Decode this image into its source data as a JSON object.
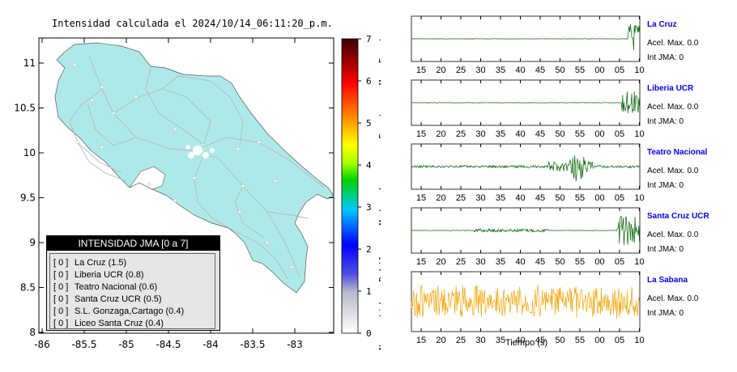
{
  "map": {
    "title": "Intensidad calculada el 2024/10/14_06:11:20_p.m.",
    "lat_ticks": [
      "11",
      "10.5",
      "10",
      "9.5",
      "9",
      "8.5",
      "8"
    ],
    "lon_ticks": [
      "-86",
      "-85.5",
      "-85",
      "-84.5",
      "-84",
      "-83.5",
      "-83"
    ],
    "land_color": "#aee9ea",
    "road_color": "#b8b8b8"
  },
  "colorbar": {
    "ticks": [
      "7",
      "6",
      "5",
      "4",
      "3",
      "2",
      "1",
      "0"
    ],
    "labels": [
      "Muy Fuerte",
      "Fuerte",
      "Moderado",
      "Debil",
      "No sentido"
    ]
  },
  "legend": {
    "title": "INTENSIDAD JMA [0 a 7]",
    "items": [
      {
        "level": "[ 0 ]",
        "name": "La Cruz (1.5)"
      },
      {
        "level": "[ 0 ]",
        "name": "Liberia UCR (0.8)"
      },
      {
        "level": "[ 0 ]",
        "name": "Teatro Nacional (0.6)"
      },
      {
        "level": "[ 0 ]",
        "name": "Santa Cruz UCR (0.5)"
      },
      {
        "level": "[ 0 ]",
        "name": "S.L. Gonzaga,Cartago (0.4)"
      },
      {
        "level": "[ 0 ]",
        "name": "Liceo Santa Cruz (0.4)"
      }
    ]
  },
  "traces": {
    "time_ticks": [
      "15",
      "20",
      "25",
      "30",
      "35",
      "40",
      "45",
      "50",
      "55",
      "00",
      "05",
      "10"
    ],
    "xlabel": "Tiempo (s)",
    "stations": [
      {
        "name": "La Cruz",
        "accel": "Acel. Max. 0.0",
        "jma": "Int JMA: 0",
        "color": "#006400"
      },
      {
        "name": "Liberia UCR",
        "accel": "Acel. Max. 0.0",
        "jma": "Int JMA: 0",
        "color": "#006400"
      },
      {
        "name": "Teatro Nacional",
        "accel": "Acel. Max. 0.0",
        "jma": "Int JMA: 0",
        "color": "#006400"
      },
      {
        "name": "Santa Cruz UCR",
        "accel": "Acel. Max. 0.0",
        "jma": "Int JMA: 0",
        "color": "#006400"
      },
      {
        "name": "La Sabana",
        "accel": "Acel. Max. 0.0",
        "jma": "Int JMA: 0",
        "color": "#f5a300"
      }
    ]
  }
}
